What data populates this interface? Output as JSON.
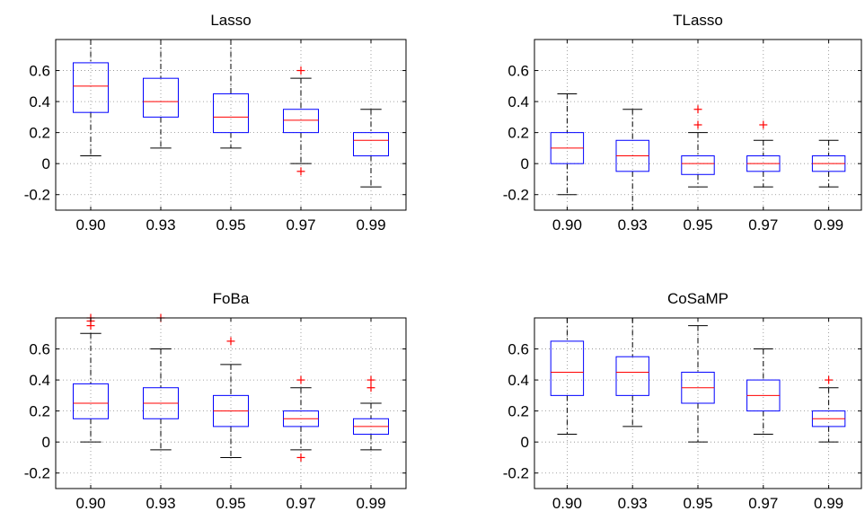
{
  "colors": {
    "box": "#0000ff",
    "median": "#ff0000",
    "whisker": "#000000",
    "outlier": "#ff0000"
  },
  "chart_data": [
    {
      "type": "box",
      "title": "Lasso",
      "categories": [
        "0.90",
        "0.93",
        "0.95",
        "0.97",
        "0.99"
      ],
      "ylim": [
        -0.3,
        0.8
      ],
      "yticks": [
        -0.2,
        0,
        0.2,
        0.4,
        0.6
      ],
      "ytick_labels": [
        "-0.2",
        "0",
        "0.2",
        "0.4",
        "0.6"
      ],
      "grid": true,
      "boxes": [
        {
          "q1": 0.33,
          "median": 0.5,
          "q3": 0.65,
          "whisker_low": 0.05,
          "whisker_high": 0.8,
          "outliers": []
        },
        {
          "q1": 0.3,
          "median": 0.4,
          "q3": 0.55,
          "whisker_low": 0.1,
          "whisker_high": 0.8,
          "outliers": []
        },
        {
          "q1": 0.2,
          "median": 0.3,
          "q3": 0.45,
          "whisker_low": 0.1,
          "whisker_high": 0.8,
          "outliers": []
        },
        {
          "q1": 0.2,
          "median": 0.28,
          "q3": 0.35,
          "whisker_low": 0.0,
          "whisker_high": 0.55,
          "outliers": [
            0.6,
            -0.05
          ]
        },
        {
          "q1": 0.05,
          "median": 0.15,
          "q3": 0.2,
          "whisker_low": -0.15,
          "whisker_high": 0.35,
          "outliers": []
        }
      ]
    },
    {
      "type": "box",
      "title": "TLasso",
      "categories": [
        "0.90",
        "0.93",
        "0.95",
        "0.97",
        "0.99"
      ],
      "ylim": [
        -0.3,
        0.8
      ],
      "yticks": [
        -0.2,
        0,
        0.2,
        0.4,
        0.6
      ],
      "ytick_labels": [
        "-0.2",
        "0",
        "0.2",
        "0.4",
        "0.6"
      ],
      "grid": true,
      "boxes": [
        {
          "q1": 0.0,
          "median": 0.1,
          "q3": 0.2,
          "whisker_low": -0.2,
          "whisker_high": 0.45,
          "outliers": []
        },
        {
          "q1": -0.05,
          "median": 0.05,
          "q3": 0.15,
          "whisker_low": -0.3,
          "whisker_high": 0.35,
          "outliers": []
        },
        {
          "q1": -0.07,
          "median": 0.0,
          "q3": 0.05,
          "whisker_low": -0.15,
          "whisker_high": 0.2,
          "outliers": [
            0.35,
            0.25
          ]
        },
        {
          "q1": -0.05,
          "median": 0.0,
          "q3": 0.05,
          "whisker_low": -0.15,
          "whisker_high": 0.15,
          "outliers": [
            0.25
          ]
        },
        {
          "q1": -0.05,
          "median": 0.0,
          "q3": 0.05,
          "whisker_low": -0.15,
          "whisker_high": 0.15,
          "outliers": []
        }
      ]
    },
    {
      "type": "box",
      "title": "FoBa",
      "categories": [
        "0.90",
        "0.93",
        "0.95",
        "0.97",
        "0.99"
      ],
      "ylim": [
        -0.3,
        0.8
      ],
      "yticks": [
        -0.2,
        0,
        0.2,
        0.4,
        0.6
      ],
      "ytick_labels": [
        "-0.2",
        "0",
        "0.2",
        "0.4",
        "0.6"
      ],
      "grid": true,
      "boxes": [
        {
          "q1": 0.15,
          "median": 0.25,
          "q3": 0.375,
          "whisker_low": 0.0,
          "whisker_high": 0.7,
          "outliers": [
            0.8,
            0.78,
            0.75
          ]
        },
        {
          "q1": 0.15,
          "median": 0.25,
          "q3": 0.35,
          "whisker_low": -0.05,
          "whisker_high": 0.6,
          "outliers": [
            0.8
          ]
        },
        {
          "q1": 0.1,
          "median": 0.2,
          "q3": 0.3,
          "whisker_low": -0.1,
          "whisker_high": 0.5,
          "outliers": [
            0.65
          ]
        },
        {
          "q1": 0.1,
          "median": 0.15,
          "q3": 0.2,
          "whisker_low": -0.05,
          "whisker_high": 0.35,
          "outliers": [
            0.4,
            -0.1
          ]
        },
        {
          "q1": 0.05,
          "median": 0.1,
          "q3": 0.15,
          "whisker_low": -0.05,
          "whisker_high": 0.25,
          "outliers": [
            0.4,
            0.35
          ]
        }
      ]
    },
    {
      "type": "box",
      "title": "CoSaMP",
      "categories": [
        "0.90",
        "0.93",
        "0.95",
        "0.97",
        "0.99"
      ],
      "ylim": [
        -0.3,
        0.8
      ],
      "yticks": [
        -0.2,
        0,
        0.2,
        0.4,
        0.6
      ],
      "ytick_labels": [
        "-0.2",
        "0",
        "0.2",
        "0.4",
        "0.6"
      ],
      "grid": true,
      "boxes": [
        {
          "q1": 0.3,
          "median": 0.45,
          "q3": 0.65,
          "whisker_low": 0.05,
          "whisker_high": 0.8,
          "outliers": []
        },
        {
          "q1": 0.3,
          "median": 0.45,
          "q3": 0.55,
          "whisker_low": 0.1,
          "whisker_high": 0.8,
          "outliers": []
        },
        {
          "q1": 0.25,
          "median": 0.35,
          "q3": 0.45,
          "whisker_low": 0.0,
          "whisker_high": 0.75,
          "outliers": []
        },
        {
          "q1": 0.2,
          "median": 0.3,
          "q3": 0.4,
          "whisker_low": 0.05,
          "whisker_high": 0.6,
          "outliers": []
        },
        {
          "q1": 0.1,
          "median": 0.15,
          "q3": 0.2,
          "whisker_low": 0.0,
          "whisker_high": 0.35,
          "outliers": [
            0.4
          ]
        }
      ]
    }
  ]
}
